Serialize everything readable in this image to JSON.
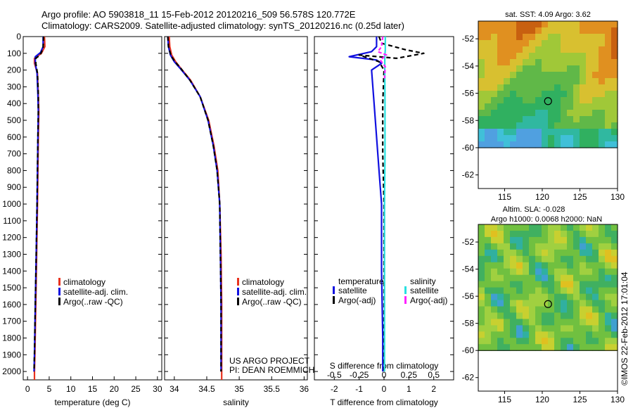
{
  "header": {
    "line1": "Argo profile: AO 5903818_11 15-Feb-2012 20120216_509 56.578S 120.772E",
    "line2": "Climatology: CARS2009. Satellite-adjusted climatology: synTS_20120216.nc (0.25d later)"
  },
  "colors": {
    "climatology": "#e8321e",
    "satellite": "#1010e0",
    "argo": "#000000",
    "salinity_satellite": "#28e0e0",
    "salinity_argo": "#ff22ff"
  },
  "chart_data": [
    {
      "type": "line",
      "panel": "temperature",
      "xlabel": "temperature (deg C)",
      "xticks": [
        0,
        5,
        10,
        15,
        20,
        25,
        30
      ],
      "xlim": [
        -1,
        31
      ],
      "yticks": [
        0,
        100,
        200,
        300,
        400,
        500,
        600,
        700,
        800,
        900,
        1000,
        1100,
        1200,
        1300,
        1400,
        1500,
        1600,
        1700,
        1800,
        1900,
        2000
      ],
      "ylim": [
        2050,
        0
      ],
      "legend": [
        "climatology",
        "satellite-adj. clim.",
        "Argo(..raw -QC)"
      ],
      "series": [
        {
          "key": "clim",
          "points": [
            [
              3.9,
              0
            ],
            [
              4.0,
              60
            ],
            [
              3.2,
              100
            ],
            [
              1.6,
              130
            ],
            [
              1.6,
              160
            ],
            [
              2.3,
              220
            ],
            [
              2.5,
              350
            ],
            [
              2.6,
              450
            ],
            [
              2.5,
              600
            ],
            [
              2.4,
              800
            ],
            [
              2.3,
              1000
            ],
            [
              2.1,
              1300
            ],
            [
              1.9,
              1600
            ],
            [
              1.7,
              1900
            ],
            [
              1.6,
              2000
            ],
            [
              1.6,
              2050
            ]
          ]
        },
        {
          "key": "sat",
          "points": [
            [
              3.6,
              0
            ],
            [
              3.6,
              60
            ],
            [
              3.0,
              95
            ],
            [
              1.8,
              120
            ],
            [
              1.8,
              160
            ],
            [
              2.2,
              220
            ],
            [
              2.4,
              350
            ],
            [
              2.5,
              450
            ],
            [
              2.4,
              600
            ],
            [
              2.3,
              800
            ],
            [
              2.2,
              1000
            ],
            [
              2.0,
              1300
            ],
            [
              1.8,
              1600
            ],
            [
              1.6,
              1900
            ],
            [
              1.5,
              2000
            ]
          ]
        },
        {
          "key": "argo",
          "points": [
            [
              3.7,
              0
            ],
            [
              3.6,
              70
            ],
            [
              2.9,
              110
            ],
            [
              1.9,
              130
            ],
            [
              1.9,
              160
            ],
            [
              2.3,
              220
            ],
            [
              2.5,
              350
            ],
            [
              2.5,
              450
            ],
            [
              2.4,
              600
            ],
            [
              2.3,
              800
            ],
            [
              2.2,
              1000
            ],
            [
              2.0,
              1300
            ],
            [
              1.8,
              1600
            ],
            [
              1.6,
              1900
            ],
            [
              1.5,
              2000
            ]
          ]
        }
      ]
    },
    {
      "type": "line",
      "panel": "salinity",
      "xlabel": "salinity",
      "xticks": [
        34,
        34.5,
        35,
        35.5,
        36
      ],
      "xlim": [
        33.85,
        36.05
      ],
      "yticks": [
        0,
        100,
        200,
        300,
        400,
        500,
        600,
        700,
        800,
        900,
        1000,
        1100,
        1200,
        1300,
        1400,
        1500,
        1600,
        1700,
        1800,
        1900,
        2000
      ],
      "ylim": [
        2050,
        0
      ],
      "legend": [
        "climatology",
        "satellite-adj. clim.",
        "Argo(..raw -QC)"
      ],
      "annotations": [
        "US ARGO PROJECT",
        "PI: DEAN ROEMMICH"
      ],
      "series": [
        {
          "key": "clim",
          "points": [
            [
              33.92,
              0
            ],
            [
              33.93,
              60
            ],
            [
              33.96,
              110
            ],
            [
              34.02,
              150
            ],
            [
              34.1,
              190
            ],
            [
              34.25,
              260
            ],
            [
              34.4,
              360
            ],
            [
              34.53,
              500
            ],
            [
              34.61,
              650
            ],
            [
              34.67,
              800
            ],
            [
              34.7,
              1000
            ],
            [
              34.72,
              1300
            ],
            [
              34.73,
              1600
            ],
            [
              34.73,
              1900
            ],
            [
              34.73,
              2050
            ]
          ]
        },
        {
          "key": "sat",
          "points": [
            [
              33.9,
              0
            ],
            [
              33.91,
              60
            ],
            [
              33.94,
              110
            ],
            [
              34.0,
              150
            ],
            [
              34.09,
              190
            ],
            [
              34.24,
              260
            ],
            [
              34.4,
              360
            ],
            [
              34.52,
              500
            ],
            [
              34.6,
              650
            ],
            [
              34.66,
              800
            ],
            [
              34.7,
              1000
            ],
            [
              34.71,
              1300
            ],
            [
              34.72,
              1600
            ],
            [
              34.72,
              1900
            ],
            [
              34.72,
              2000
            ]
          ]
        },
        {
          "key": "argo",
          "points": [
            [
              33.9,
              0
            ],
            [
              33.91,
              60
            ],
            [
              33.95,
              115
            ],
            [
              34.01,
              150
            ],
            [
              34.1,
              190
            ],
            [
              34.24,
              260
            ],
            [
              34.4,
              360
            ],
            [
              34.52,
              500
            ],
            [
              34.6,
              650
            ],
            [
              34.66,
              800
            ],
            [
              34.7,
              1000
            ],
            [
              34.71,
              1300
            ],
            [
              34.72,
              1600
            ],
            [
              34.72,
              1900
            ],
            [
              34.72,
              2000
            ]
          ]
        }
      ]
    },
    {
      "type": "line",
      "panel": "difference",
      "xlabel": "T difference from climatology",
      "xlabel_top": "S difference from climatology",
      "xticks": [
        -2,
        -1,
        0,
        1,
        2
      ],
      "xticks_top": [
        "-0.5",
        "-0.25",
        "0",
        "0.25",
        "0.5"
      ],
      "xlim": [
        -2.8,
        2.8
      ],
      "yticks": [
        0,
        100,
        200,
        300,
        400,
        500,
        600,
        700,
        800,
        900,
        1000,
        1100,
        1200,
        1300,
        1400,
        1500,
        1600,
        1700,
        1800,
        1900,
        2000
      ],
      "ylim": [
        2050,
        0
      ],
      "legend_headers": [
        "temperature",
        "salinity"
      ],
      "legend": [
        "satellite",
        "Argo(-adj)",
        "satellite",
        "Argo(-adj)"
      ],
      "series": [
        {
          "key": "t_sat",
          "points": [
            [
              -0.3,
              0
            ],
            [
              -0.3,
              60
            ],
            [
              -0.5,
              90
            ],
            [
              -1.4,
              120
            ],
            [
              -0.3,
              140
            ],
            [
              -0.1,
              160
            ],
            [
              -0.5,
              200
            ],
            [
              -0.4,
              400
            ],
            [
              -0.3,
              600
            ],
            [
              -0.2,
              800
            ],
            [
              -0.1,
              1000
            ],
            [
              -0.1,
              1400
            ],
            [
              -0.05,
              1800
            ],
            [
              -0.05,
              2000
            ]
          ]
        },
        {
          "key": "t_argo",
          "points": [
            [
              -0.2,
              0
            ],
            [
              -0.1,
              40
            ],
            [
              0.9,
              80
            ],
            [
              1.6,
              100
            ],
            [
              0.5,
              130
            ],
            [
              -1.0,
              110
            ],
            [
              -0.2,
              150
            ],
            [
              0.0,
              200
            ],
            [
              -0.05,
              400
            ],
            [
              -0.05,
              700
            ],
            [
              0.0,
              1000
            ],
            [
              0.0,
              1500
            ],
            [
              0.0,
              2000
            ]
          ]
        },
        {
          "key": "s_sat",
          "points": [
            [
              0.05,
              0
            ],
            [
              0.05,
              80
            ],
            [
              0.03,
              120
            ],
            [
              0.03,
              200
            ],
            [
              0.04,
              400
            ],
            [
              0.04,
              700
            ],
            [
              0.02,
              1000
            ],
            [
              0.02,
              1500
            ],
            [
              0.02,
              2000
            ]
          ]
        },
        {
          "key": "s_argo",
          "points": [
            [
              -0.05,
              0
            ],
            [
              -0.1,
              60
            ],
            [
              -0.25,
              90
            ],
            [
              0.1,
              110
            ],
            [
              -0.15,
              140
            ],
            [
              0.05,
              180
            ],
            [
              0.02,
              250
            ]
          ]
        }
      ]
    },
    {
      "type": "heatmap",
      "panel": "sst-map",
      "title": "sat. SST: 4.09  Argo: 3.62",
      "xticks": [
        115,
        120,
        125,
        130
      ],
      "yticks": [
        -52,
        -54,
        -56,
        -58,
        -60,
        -62
      ],
      "xlim": [
        111.5,
        130
      ],
      "ylim": [
        -63,
        -50.7
      ],
      "marker": [
        120.772,
        -56.578
      ]
    },
    {
      "type": "heatmap",
      "panel": "sla-map",
      "title": "Altim. SLA: -0.028",
      "subtitle": "Argo h1000: 0.0068  h2000: NaN",
      "xticks": [
        115,
        120,
        125,
        130
      ],
      "yticks": [
        -52,
        -54,
        -56,
        -58,
        -60,
        -62
      ],
      "xlim": [
        111.5,
        130
      ],
      "ylim": [
        -63,
        -50.7
      ],
      "marker": [
        120.772,
        -56.578
      ]
    }
  ],
  "footer": {
    "imos_stamp": "©IMOS 22-Feb-2012 17:01:04"
  }
}
